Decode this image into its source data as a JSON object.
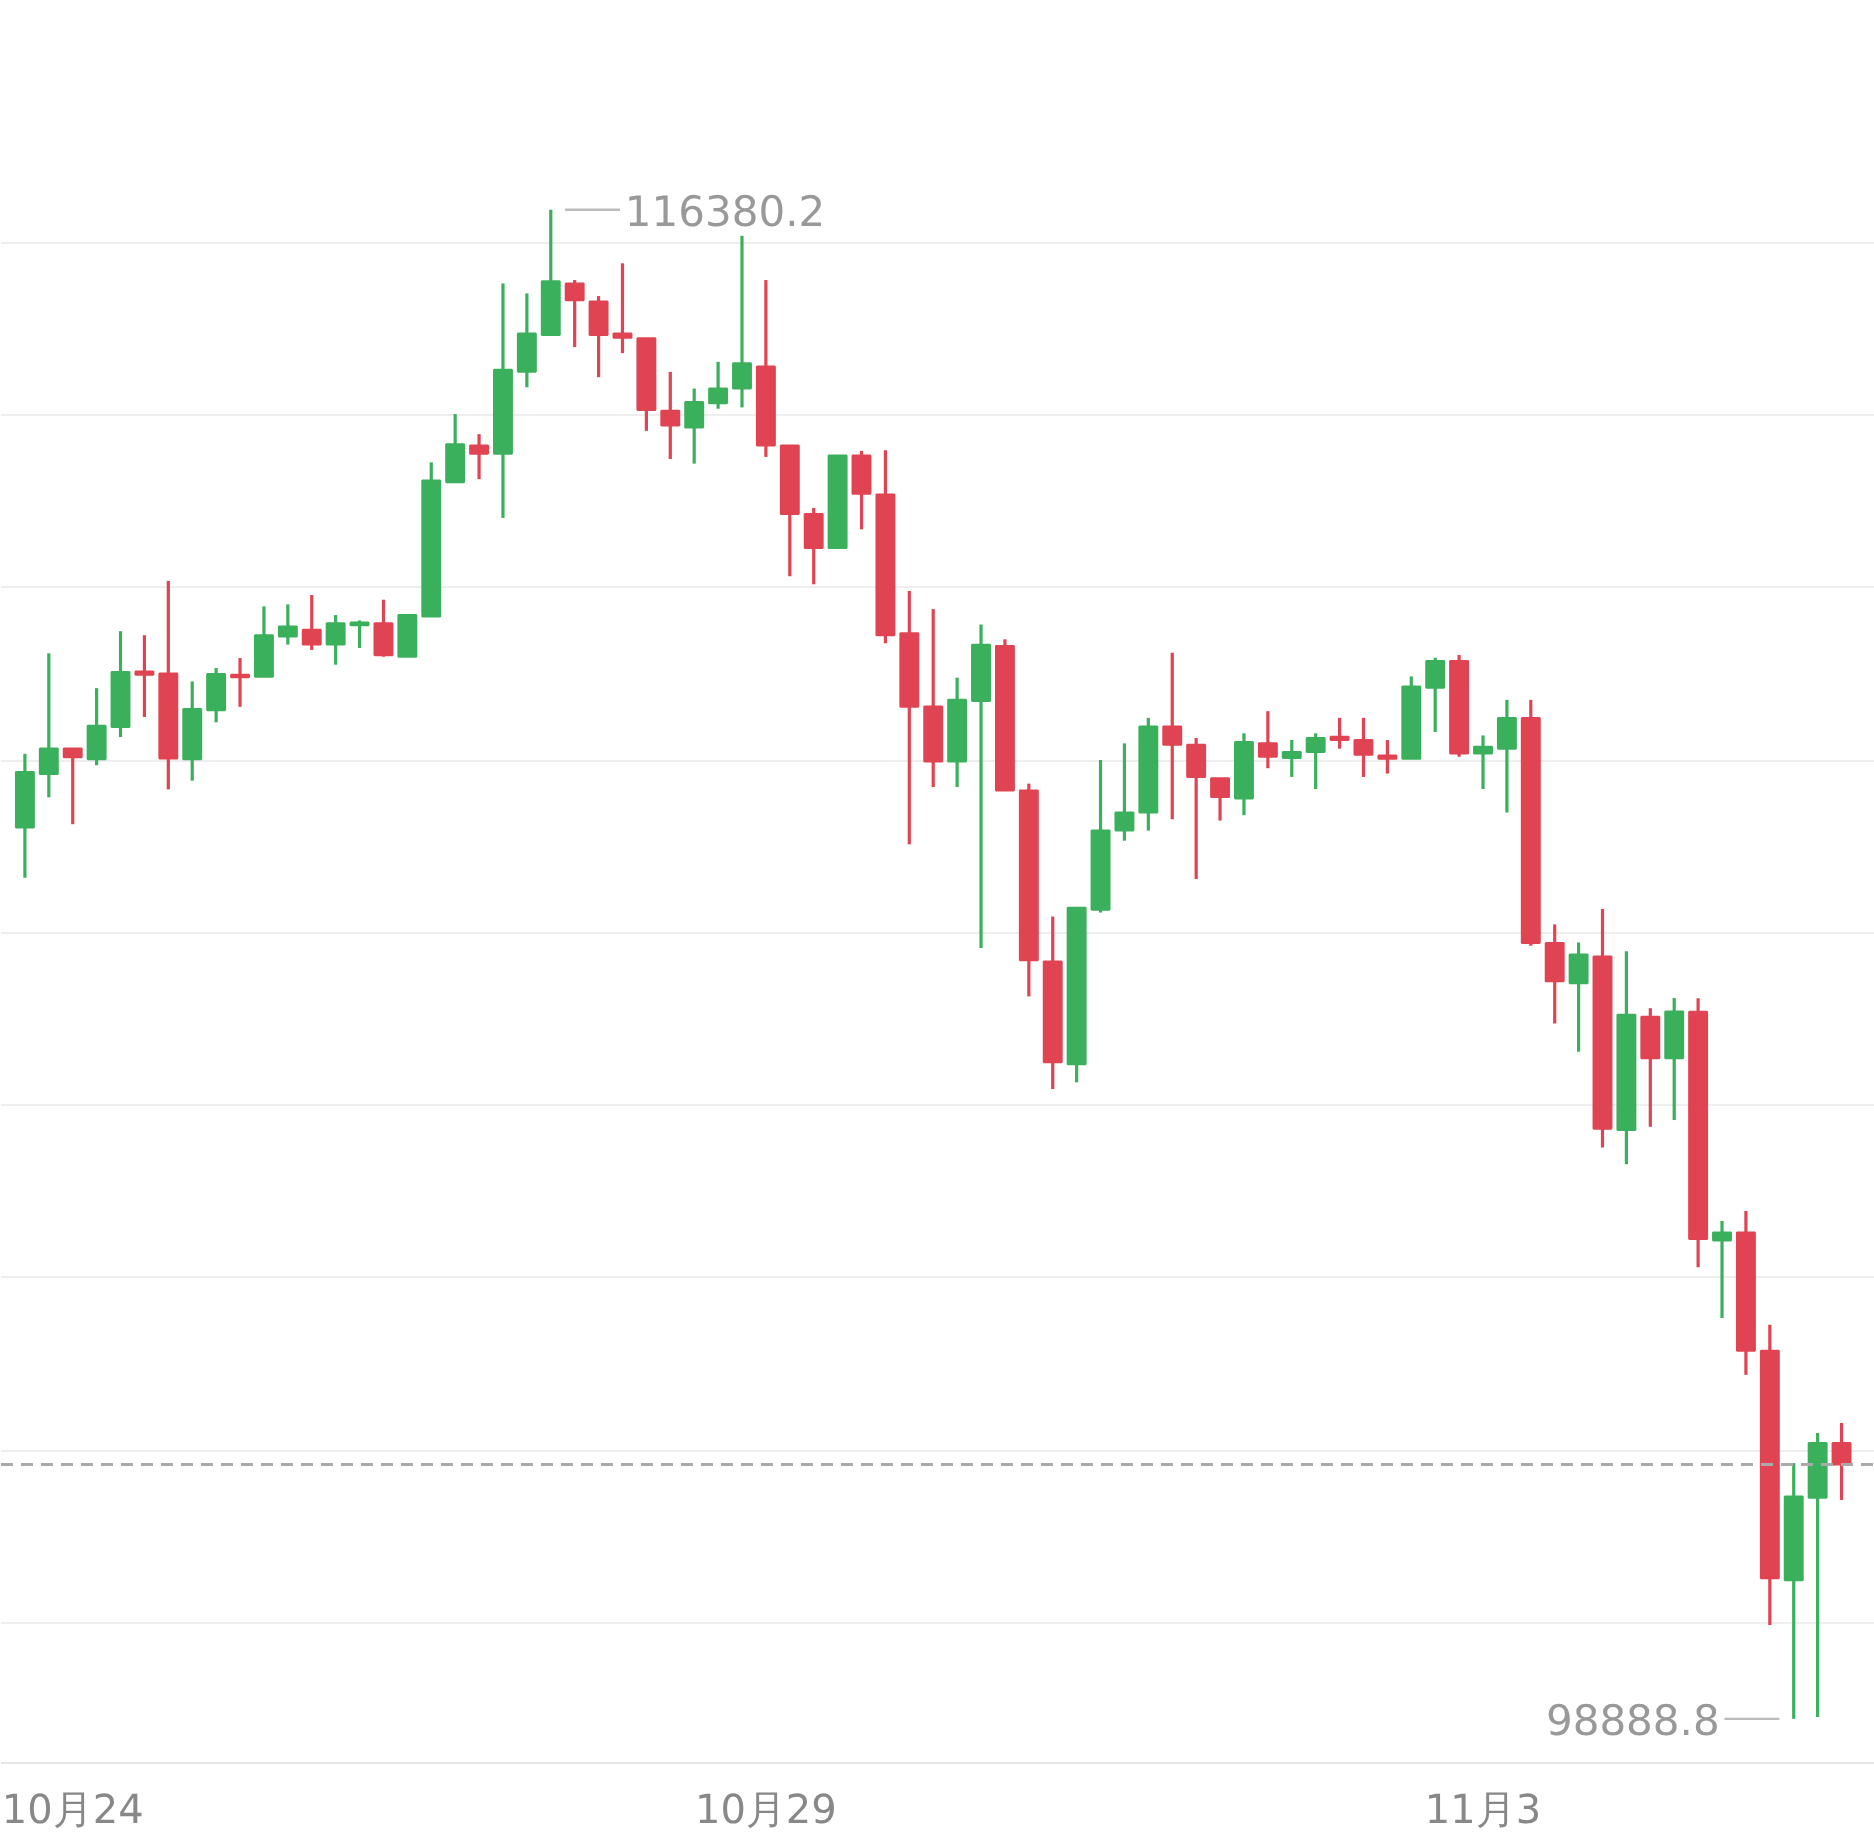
{
  "chart_data": {
    "type": "candlestick",
    "categories": [
      null,
      null,
      "10月24",
      null,
      null,
      null,
      null,
      null,
      null,
      null,
      null,
      null,
      null,
      null,
      null,
      null,
      null,
      null,
      null,
      null,
      null,
      null,
      null,
      null,
      null,
      null,
      null,
      null,
      null,
      null,
      null,
      "10月29",
      null,
      null,
      null,
      null,
      null,
      null,
      null,
      null,
      null,
      null,
      null,
      null,
      null,
      null,
      null,
      null,
      null,
      null,
      null,
      null,
      null,
      null,
      null,
      null,
      null,
      null,
      null,
      null,
      null,
      "11月3",
      null,
      null,
      null,
      null,
      null,
      null,
      null,
      null,
      null,
      null,
      null,
      null,
      null,
      null,
      null
    ],
    "ohlc": [
      [
        109219,
        110074,
        108637,
        109864
      ],
      [
        109841,
        111239,
        109569,
        110136
      ],
      [
        110136,
        110136,
        109258,
        110035
      ],
      [
        110012,
        110835,
        109942,
        110400
      ],
      [
        110384,
        111495,
        110268,
        111021
      ],
      [
        111029,
        111449,
        110501,
        110990
      ],
      [
        111006,
        112078,
        109662,
        110019
      ],
      [
        110012,
        110913,
        109763,
        110594
      ],
      [
        110579,
        111068,
        110439,
        110998
      ],
      [
        110990,
        111184,
        110618,
        110960
      ],
      [
        110967,
        111783,
        110967,
        111449
      ],
      [
        111433,
        111806,
        111340,
        111550
      ],
      [
        111511,
        111914,
        111278,
        111340
      ],
      [
        111340,
        111682,
        111107,
        111588
      ],
      [
        111565,
        111620,
        111301,
        111596
      ],
      [
        111588,
        111860,
        111200,
        111216
      ],
      [
        111200,
        111682,
        111200,
        111682
      ],
      [
        111666,
        113452,
        111666,
        113243
      ],
      [
        113220,
        114012,
        113220,
        113662
      ],
      [
        113647,
        113779,
        113258,
        113553
      ],
      [
        113553,
        115526,
        112808,
        114524
      ],
      [
        114501,
        115410,
        114322,
        114944
      ],
      [
        114928,
        116380.2,
        114928,
        115550
      ],
      [
        115526,
        115565,
        114788,
        115332
      ],
      [
        115317,
        115379,
        114439,
        114928
      ],
      [
        114944,
        115759,
        114718,
        114897
      ],
      [
        114889,
        114889,
        113817,
        114058
      ],
      [
        114050,
        114501,
        113491,
        113880
      ],
      [
        113856,
        114307,
        113437,
        114151
      ],
      [
        114136,
        114617,
        114074,
        114307
      ],
      [
        114307,
        116078,
        114089,
        114602
      ],
      [
        114563,
        115565,
        113515,
        113647
      ],
      [
        113647,
        113647,
        112132,
        112854
      ],
      [
        112854,
        112924,
        112039,
        112458
      ],
      [
        112458,
        113530,
        112458,
        113530
      ],
      [
        113530,
        113585,
        112676,
        113087
      ],
      [
        113080,
        113592,
        111355,
        111449
      ],
      [
        111472,
        111961,
        109025,
        110618
      ],
      [
        110623,
        111751,
        109689,
        109985
      ],
      [
        109985,
        110957,
        109689,
        110701
      ],
      [
        110685,
        111572,
        107822,
        111339
      ],
      [
        111323,
        111401,
        109650,
        109650
      ],
      [
        109650,
        109728,
        107262,
        107682
      ],
      [
        107666,
        108188,
        106188,
        106500
      ],
      [
        106476,
        108289,
        106266,
        108289
      ],
      [
        108266,
        110001,
        108234,
        109184
      ],
      [
        109184,
        110195,
        109067,
        109394
      ],
      [
        109394,
        110491,
        109184,
        110390
      ],
      [
        110390,
        111245,
        109316,
        110180
      ],
      [
        110180,
        110257,
        108623,
        109806
      ],
      [
        109790,
        109790,
        109300,
        109573
      ],
      [
        109557,
        110312,
        109363,
        110211
      ],
      [
        110195,
        110568,
        109907,
        110040
      ],
      [
        110024,
        110234,
        109806,
        110094
      ],
      [
        110094,
        110312,
        109666,
        110257
      ],
      [
        110273,
        110491,
        110133,
        110234
      ],
      [
        110234,
        110491,
        109806,
        110063
      ],
      [
        110054,
        110233,
        109845,
        110016
      ],
      [
        110016,
        110971,
        110016,
        110854
      ],
      [
        110839,
        111188,
        110326,
        111149
      ],
      [
        111149,
        111219,
        110039,
        110078
      ],
      [
        110078,
        110287,
        109666,
        110155
      ],
      [
        110132,
        110699,
        109394,
        110489
      ],
      [
        110489,
        110699,
        107849,
        107880
      ],
      [
        107880,
        108097,
        106948,
        107437
      ],
      [
        107414,
        107887,
        106621,
        107748
      ],
      [
        107724,
        108276,
        105511,
        105728
      ],
      [
        105713,
        107786,
        105317,
        107049
      ],
      [
        107025,
        107126,
        105751,
        106544
      ],
      [
        106544,
        107243,
        105829,
        107088
      ],
      [
        107085,
        107240,
        104124,
        104450
      ],
      [
        104434,
        104659,
        103535,
        104527
      ],
      [
        104527,
        104775,
        102876,
        103155
      ],
      [
        103155,
        103457,
        99977,
        100519
      ],
      [
        100496,
        101853,
        98888.8,
        101465
      ],
      [
        101450,
        102202,
        98910,
        102085
      ],
      [
        102085,
        102318,
        101426,
        101837
      ]
    ],
    "colors": [
      "#3bb05c",
      "#3bb05c",
      "#e04452",
      "#3bb05c",
      "#3bb05c",
      "#e04452",
      "#e04452",
      "#3bb05c",
      "#3bb05c",
      "#e04452",
      "#3bb05c",
      "#3bb05c",
      "#e04452",
      "#3bb05c",
      "#3bb05c",
      "#e04452",
      "#3bb05c",
      "#3bb05c",
      "#3bb05c",
      "#e04452",
      "#3bb05c",
      "#3bb05c",
      "#3bb05c",
      "#e04452",
      "#e04452",
      "#e04452",
      "#e04452",
      "#e04452",
      "#3bb05c",
      "#3bb05c",
      "#3bb05c",
      "#e04452",
      "#e04452",
      "#e04452",
      "#3bb05c",
      "#e04452",
      "#e04452",
      "#e04452",
      "#e04452",
      "#3bb05c",
      "#3bb05c",
      "#e04452",
      "#e04452",
      "#e04452",
      "#3bb05c",
      "#3bb05c",
      "#3bb05c",
      "#3bb05c",
      "#e04452",
      "#e04452",
      "#e04452",
      "#3bb05c",
      "#e04452",
      "#3bb05c",
      "#3bb05c",
      "#e04452",
      "#e04452",
      "#e04452",
      "#3bb05c",
      "#3bb05c",
      "#e04452",
      "#3bb05c",
      "#3bb05c",
      "#e04452",
      "#e04452",
      "#3bb05c",
      "#e04452",
      "#3bb05c",
      "#e04452",
      "#3bb05c",
      "#e04452",
      "#3bb05c",
      "#e04452",
      "#e04452",
      "#3bb05c",
      "#3bb05c",
      "#e04452"
    ],
    "yticks": [
      {
        "value": 100000,
        "label": null
      },
      {
        "value": 102000,
        "label": null
      },
      {
        "value": 104000,
        "label": null
      },
      {
        "value": 106000,
        "label": null
      },
      {
        "value": 108000,
        "label": null
      },
      {
        "value": 110000,
        "label": null
      },
      {
        "value": 112000,
        "label": null
      },
      {
        "value": 114000,
        "label": null
      },
      {
        "value": 116000,
        "label": null
      }
    ],
    "tick_labels": "x",
    "grid": "y",
    "ref_lines": [
      {
        "axis": "y",
        "value": 101837,
        "color": "#aaaaaa",
        "line_style": "dashed"
      }
    ],
    "annotations": [
      "116380.2",
      "98888.8"
    ]
  }
}
